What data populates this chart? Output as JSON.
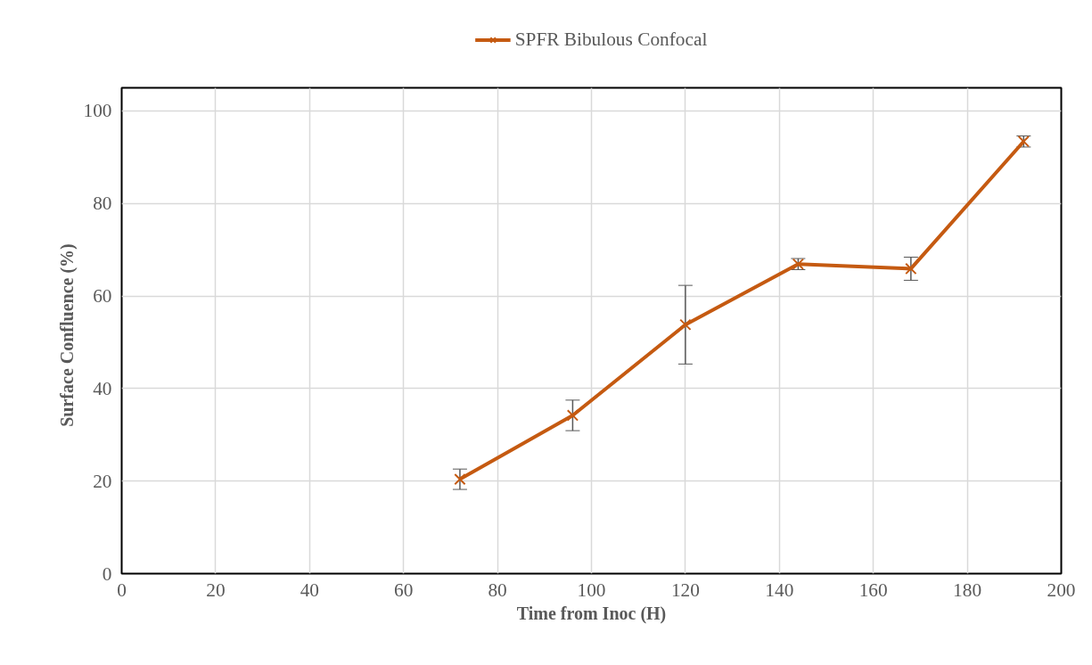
{
  "chart_data": {
    "type": "line",
    "xlabel": "Time from Inoc (H)",
    "ylabel": "Surface  Confluence  (%)",
    "x": [
      72,
      96,
      120,
      144,
      168,
      192
    ],
    "series": [
      {
        "name": "SPFR Bibulous Confocal",
        "color": "#c55a11",
        "values": [
          20.4,
          34.2,
          53.8,
          66.9,
          65.9,
          93.4
        ],
        "errors": [
          2.2,
          3.3,
          8.5,
          1.2,
          2.5,
          1.2
        ]
      }
    ],
    "xlim": [
      0,
      200
    ],
    "xticks": [
      0,
      20,
      40,
      60,
      80,
      100,
      120,
      140,
      160,
      180,
      200
    ],
    "ylim": [
      0,
      105
    ],
    "yticks": [
      0,
      20,
      40,
      60,
      80,
      100
    ],
    "grid": true,
    "legend": "top",
    "marker": "cross",
    "line_style": "solid"
  }
}
